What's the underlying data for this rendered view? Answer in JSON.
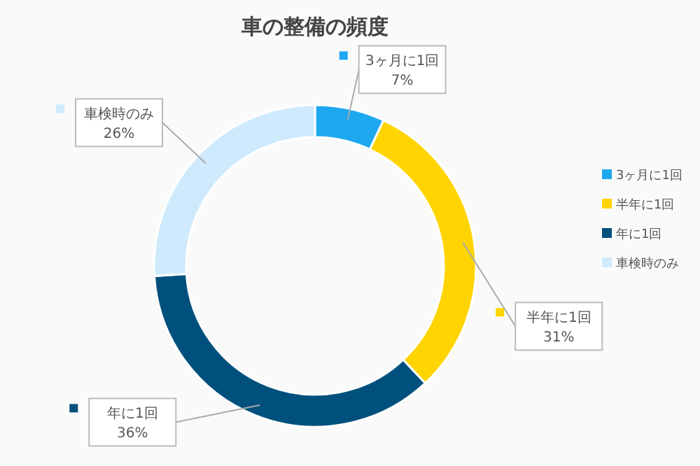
{
  "chart_data": {
    "type": "donut",
    "title": "車の整備の頻度",
    "categories": [
      "3ヶ月に1回",
      "半年に1回",
      "年に1回",
      "車検時のみ"
    ],
    "values": [
      7,
      31,
      36,
      26
    ],
    "value_labels": [
      "7%",
      "31%",
      "36%",
      "26%"
    ],
    "colors": [
      "#1ea8f0",
      "#ffd400",
      "#00507d",
      "#cfeafc"
    ],
    "legend": "right"
  }
}
